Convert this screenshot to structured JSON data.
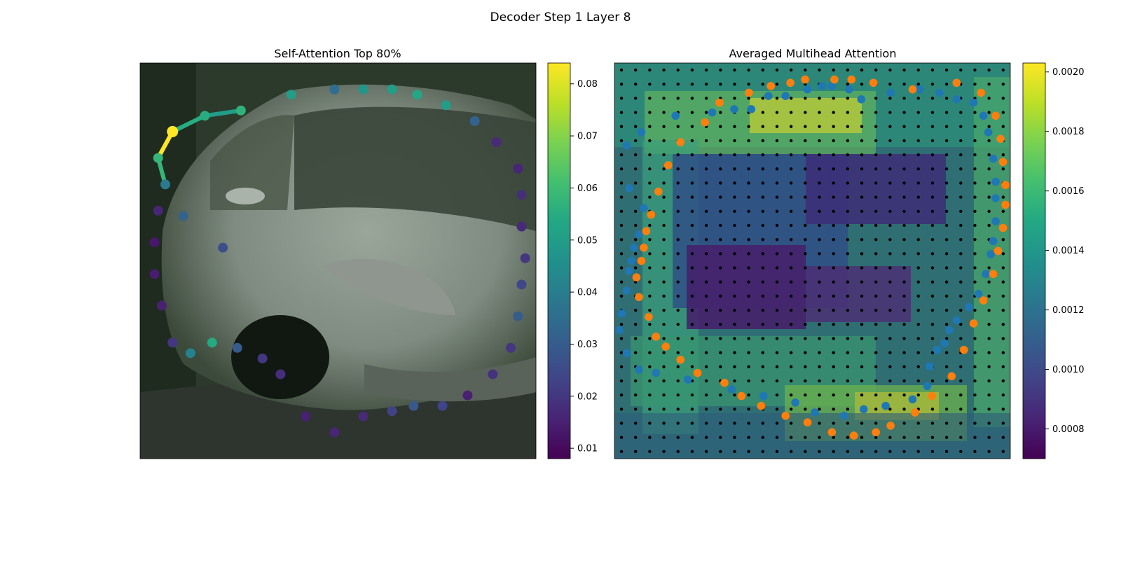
{
  "figure": {
    "suptitle": "Decoder Step 1 Layer 8"
  },
  "chart_data": [
    {
      "type": "scatter",
      "title": "Self-Attention Top 80%",
      "background": "photo (silver car, dark foliage)",
      "colormap": "viridis",
      "colorbar": {
        "ticks": [
          0.01,
          0.02,
          0.03,
          0.04,
          0.05,
          0.06,
          0.07,
          0.08
        ],
        "min": 0.008,
        "max": 0.084
      },
      "highlight_index": 4,
      "points": [
        [
          0.33,
          0.2,
          0.026
        ],
        [
          0.22,
          0.26,
          0.032
        ],
        [
          0.17,
          0.32,
          0.039
        ],
        [
          0.15,
          0.37,
          0.058
        ],
        [
          0.19,
          0.42,
          0.084
        ],
        [
          0.28,
          0.45,
          0.055
        ],
        [
          0.38,
          0.46,
          0.057
        ],
        [
          0.52,
          0.49,
          0.05
        ],
        [
          0.64,
          0.5,
          0.035
        ],
        [
          0.72,
          0.5,
          0.048
        ],
        [
          0.8,
          0.5,
          0.05
        ],
        [
          0.87,
          0.49,
          0.053
        ],
        [
          0.95,
          0.47,
          0.05
        ],
        [
          1.03,
          0.44,
          0.032
        ],
        [
          1.09,
          0.4,
          0.017
        ],
        [
          1.15,
          0.35,
          0.016
        ],
        [
          1.16,
          0.3,
          0.018
        ],
        [
          1.16,
          0.24,
          0.017
        ],
        [
          1.17,
          0.18,
          0.02
        ],
        [
          1.16,
          0.13,
          0.024
        ],
        [
          1.15,
          0.07,
          0.03
        ],
        [
          1.13,
          0.01,
          0.02
        ],
        [
          1.08,
          -0.04,
          0.019
        ],
        [
          1.01,
          -0.08,
          0.015
        ],
        [
          0.94,
          -0.1,
          0.023
        ],
        [
          0.86,
          -0.1,
          0.029
        ],
        [
          0.8,
          -0.11,
          0.023
        ],
        [
          0.72,
          -0.12,
          0.017
        ],
        [
          0.64,
          -0.15,
          0.016
        ],
        [
          0.56,
          -0.12,
          0.015
        ],
        [
          0.49,
          -0.04,
          0.018
        ],
        [
          0.44,
          -0.01,
          0.02
        ],
        [
          0.37,
          0.01,
          0.03
        ],
        [
          0.3,
          0.02,
          0.054
        ],
        [
          0.24,
          0.0,
          0.041
        ],
        [
          0.19,
          0.02,
          0.02
        ],
        [
          0.16,
          0.09,
          0.015
        ],
        [
          0.14,
          0.15,
          0.014
        ],
        [
          0.14,
          0.21,
          0.013
        ],
        [
          0.15,
          0.27,
          0.016
        ]
      ],
      "edges": [
        [
          3,
          4,
          0.084
        ],
        [
          2,
          3,
          0.058
        ],
        [
          4,
          5,
          0.055
        ],
        [
          5,
          6,
          0.05
        ]
      ]
    },
    {
      "type": "heatmap",
      "title": "Averaged Multihead Attention",
      "background": "photo overlaid with attention heatmap",
      "colormap": "viridis",
      "colorbar": {
        "ticks": [
          0.0008,
          0.001,
          0.0012,
          0.0014,
          0.0016,
          0.0018,
          0.002
        ],
        "min": 0.0007,
        "max": 0.00203
      },
      "grid_dots": {
        "rows": 28,
        "cols": 28
      },
      "series": [
        {
          "color": "#1f77b4",
          "points": [
            [
              1.01,
              0.35
            ],
            [
              0.96,
              0.38
            ],
            [
              0.89,
              0.39
            ],
            [
              0.85,
              0.39
            ],
            [
              0.79,
              0.38
            ],
            [
              0.7,
              0.36
            ],
            [
              0.63,
              0.36
            ],
            [
              0.56,
              0.32
            ],
            [
              0.49,
              0.32
            ],
            [
              0.4,
              0.31
            ],
            [
              0.25,
              0.3
            ],
            [
              0.11,
              0.25
            ],
            [
              0.05,
              0.21
            ],
            [
              0.06,
              0.08
            ],
            [
              0.12,
              0.02
            ],
            [
              0.1,
              -0.06
            ],
            [
              0.08,
              -0.1
            ],
            [
              0.07,
              -0.14
            ],
            [
              0.06,
              -0.17
            ],
            [
              0.05,
              -0.23
            ],
            [
              0.03,
              -0.3
            ],
            [
              0.02,
              -0.35
            ],
            [
              0.05,
              -0.42
            ],
            [
              0.1,
              -0.47
            ],
            [
              0.17,
              -0.48
            ],
            [
              0.3,
              -0.5
            ],
            [
              0.48,
              -0.53
            ],
            [
              0.61,
              -0.55
            ],
            [
              0.74,
              -0.57
            ],
            [
              0.82,
              -0.6
            ],
            [
              0.94,
              -0.61
            ],
            [
              1.02,
              -0.59
            ],
            [
              1.11,
              -0.58
            ],
            [
              1.22,
              -0.56
            ],
            [
              1.28,
              -0.52
            ],
            [
              1.29,
              -0.46
            ],
            [
              1.32,
              -0.41
            ],
            [
              1.35,
              -0.39
            ],
            [
              1.37,
              -0.35
            ],
            [
              1.4,
              -0.32
            ],
            [
              1.45,
              -0.28
            ],
            [
              1.49,
              -0.24
            ],
            [
              1.52,
              -0.18
            ],
            [
              1.54,
              -0.12
            ],
            [
              1.55,
              -0.08
            ],
            [
              1.56,
              -0.02
            ],
            [
              1.56,
              0.05
            ],
            [
              1.56,
              0.1
            ],
            [
              1.55,
              0.17
            ],
            [
              1.53,
              0.25
            ],
            [
              1.51,
              0.3
            ],
            [
              1.47,
              0.34
            ],
            [
              1.4,
              0.35
            ],
            [
              1.33,
              0.37
            ],
            [
              1.25,
              0.38
            ],
            [
              1.13,
              0.37
            ]
          ]
        },
        {
          "color": "#ff7f0e",
          "points": [
            [
              1.22,
              0.38
            ],
            [
              1.06,
              0.4
            ],
            [
              0.97,
              0.41
            ],
            [
              0.9,
              0.41
            ],
            [
              0.78,
              0.41
            ],
            [
              0.72,
              0.4
            ],
            [
              0.64,
              0.39
            ],
            [
              0.55,
              0.37
            ],
            [
              0.43,
              0.34
            ],
            [
              0.37,
              0.28
            ],
            [
              0.27,
              0.22
            ],
            [
              0.22,
              0.15
            ],
            [
              0.18,
              0.07
            ],
            [
              0.15,
              0.0
            ],
            [
              0.13,
              -0.05
            ],
            [
              0.12,
              -0.1
            ],
            [
              0.11,
              -0.14
            ],
            [
              0.09,
              -0.19
            ],
            [
              0.1,
              -0.25
            ],
            [
              0.14,
              -0.31
            ],
            [
              0.17,
              -0.37
            ],
            [
              0.21,
              -0.4
            ],
            [
              0.27,
              -0.44
            ],
            [
              0.34,
              -0.48
            ],
            [
              0.45,
              -0.51
            ],
            [
              0.52,
              -0.55
            ],
            [
              0.6,
              -0.58
            ],
            [
              0.7,
              -0.61
            ],
            [
              0.79,
              -0.63
            ],
            [
              0.89,
              -0.66
            ],
            [
              0.98,
              -0.67
            ],
            [
              1.07,
              -0.66
            ],
            [
              1.13,
              -0.64
            ],
            [
              1.23,
              -0.6
            ],
            [
              1.3,
              -0.55
            ],
            [
              1.38,
              -0.49
            ],
            [
              1.43,
              -0.41
            ],
            [
              1.47,
              -0.33
            ],
            [
              1.51,
              -0.26
            ],
            [
              1.55,
              -0.18
            ],
            [
              1.57,
              -0.11
            ],
            [
              1.59,
              -0.04
            ],
            [
              1.6,
              0.03
            ],
            [
              1.6,
              0.09
            ],
            [
              1.59,
              0.16
            ],
            [
              1.58,
              0.23
            ],
            [
              1.56,
              0.3
            ],
            [
              1.5,
              0.37
            ],
            [
              1.4,
              0.4
            ]
          ]
        }
      ]
    }
  ]
}
